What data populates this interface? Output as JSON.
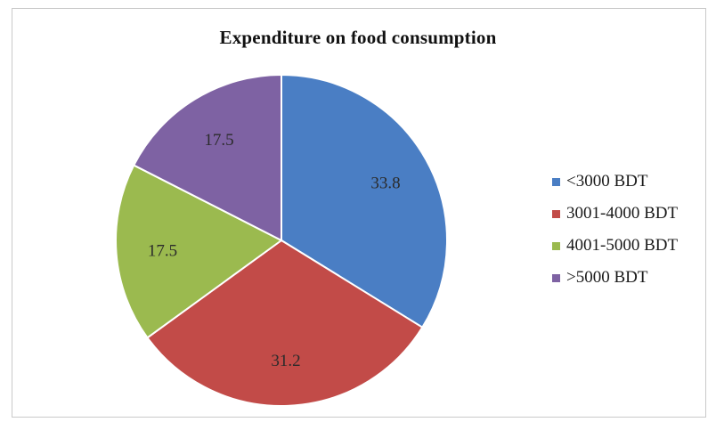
{
  "chart_data": {
    "type": "pie",
    "title": "Expenditure on food consumption",
    "categories": [
      "<3000 BDT",
      "3001-4000 BDT",
      "4001-5000 BDT",
      ">5000 BDT"
    ],
    "values": [
      33.8,
      31.2,
      17.5,
      17.5
    ],
    "data_labels": [
      "33.8",
      "31.2",
      "17.5",
      "17.5"
    ],
    "colors": [
      "#4a7ec4",
      "#c24b48",
      "#9bba4f",
      "#7e62a3"
    ],
    "legend_position": "right",
    "start_angle": "top, clockwise"
  }
}
